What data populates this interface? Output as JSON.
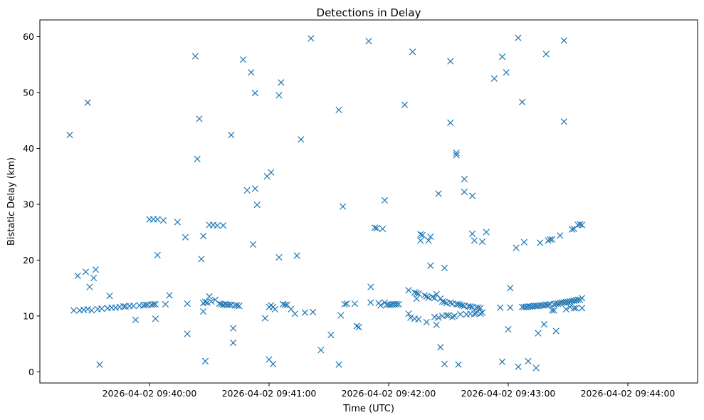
{
  "chart_data": {
    "type": "scatter",
    "title": "Detections in Delay",
    "xlabel": "Time (UTC)",
    "ylabel": "Bistatic Delay (km)",
    "marker": "x",
    "color": "#1f77b4",
    "grid": false,
    "x_tick_labels": [
      "2026-04-02 09:40:00",
      "2026-04-02 09:41:00",
      "2026-04-02 09:42:00",
      "2026-04-02 09:43:00",
      "2026-04-02 09:44:00"
    ],
    "y_ticks": [
      0,
      10,
      20,
      30,
      40,
      50,
      60
    ],
    "xlim": [
      "2026-04-02 09:39:05",
      "2026-04-02 09:44:35"
    ],
    "ylim": [
      -2,
      63
    ],
    "points": [
      {
        "t": "2026-04-02 09:39:20",
        "d": 42.4
      },
      {
        "t": "2026-04-02 09:39:22",
        "d": 11.0
      },
      {
        "t": "2026-04-02 09:39:24",
        "d": 17.2
      },
      {
        "t": "2026-04-02 09:39:25",
        "d": 11.0
      },
      {
        "t": "2026-04-02 09:39:27",
        "d": 11.1
      },
      {
        "t": "2026-04-02 09:39:28",
        "d": 17.9
      },
      {
        "t": "2026-04-02 09:39:29",
        "d": 48.2
      },
      {
        "t": "2026-04-02 09:39:29",
        "d": 11.2
      },
      {
        "t": "2026-04-02 09:39:30",
        "d": 15.2
      },
      {
        "t": "2026-04-02 09:39:31",
        "d": 11.0
      },
      {
        "t": "2026-04-02 09:39:32",
        "d": 16.8
      },
      {
        "t": "2026-04-02 09:39:33",
        "d": 18.3
      },
      {
        "t": "2026-04-02 09:39:34",
        "d": 11.2
      },
      {
        "t": "2026-04-02 09:39:35",
        "d": 1.3
      },
      {
        "t": "2026-04-02 09:39:36",
        "d": 11.3
      },
      {
        "t": "2026-04-02 09:39:39",
        "d": 11.4
      },
      {
        "t": "2026-04-02 09:39:40",
        "d": 13.6
      },
      {
        "t": "2026-04-02 09:39:41",
        "d": 11.5
      },
      {
        "t": "2026-04-02 09:39:43",
        "d": 11.5
      },
      {
        "t": "2026-04-02 09:39:45",
        "d": 11.6
      },
      {
        "t": "2026-04-02 09:39:47",
        "d": 11.7
      },
      {
        "t": "2026-04-02 09:39:48",
        "d": 11.7
      },
      {
        "t": "2026-04-02 09:39:50",
        "d": 11.8
      },
      {
        "t": "2026-04-02 09:39:52",
        "d": 11.8
      },
      {
        "t": "2026-04-02 09:39:53",
        "d": 9.3
      },
      {
        "t": "2026-04-02 09:39:55",
        "d": 11.9
      },
      {
        "t": "2026-04-02 09:39:57",
        "d": 11.9
      },
      {
        "t": "2026-04-02 09:39:58",
        "d": 12.0
      },
      {
        "t": "2026-04-02 09:39:59",
        "d": 12.0
      },
      {
        "t": "2026-04-02 09:40:00",
        "d": 27.3
      },
      {
        "t": "2026-04-02 09:40:02",
        "d": 27.3
      },
      {
        "t": "2026-04-02 09:40:01",
        "d": 12.0
      },
      {
        "t": "2026-04-02 09:40:02",
        "d": 12.1
      },
      {
        "t": "2026-04-02 09:40:03",
        "d": 12.1
      },
      {
        "t": "2026-04-02 09:40:03",
        "d": 9.5
      },
      {
        "t": "2026-04-02 09:40:04",
        "d": 20.9
      },
      {
        "t": "2026-04-02 09:40:04",
        "d": 27.3
      },
      {
        "t": "2026-04-02 09:40:07",
        "d": 27.1
      },
      {
        "t": "2026-04-02 09:40:08",
        "d": 12.1
      },
      {
        "t": "2026-04-02 09:40:10",
        "d": 13.7
      },
      {
        "t": "2026-04-02 09:40:14",
        "d": 26.8
      },
      {
        "t": "2026-04-02 09:40:18",
        "d": 24.1
      },
      {
        "t": "2026-04-02 09:40:19",
        "d": 6.8
      },
      {
        "t": "2026-04-02 09:40:19",
        "d": 12.2
      },
      {
        "t": "2026-04-02 09:40:23",
        "d": 56.5
      },
      {
        "t": "2026-04-02 09:40:24",
        "d": 38.1
      },
      {
        "t": "2026-04-02 09:40:25",
        "d": 45.3
      },
      {
        "t": "2026-04-02 09:40:26",
        "d": 20.2
      },
      {
        "t": "2026-04-02 09:40:27",
        "d": 24.3
      },
      {
        "t": "2026-04-02 09:40:27",
        "d": 10.8
      },
      {
        "t": "2026-04-02 09:40:27",
        "d": 12.3
      },
      {
        "t": "2026-04-02 09:40:28",
        "d": 12.5
      },
      {
        "t": "2026-04-02 09:40:28",
        "d": 1.9
      },
      {
        "t": "2026-04-02 09:40:29",
        "d": 12.4
      },
      {
        "t": "2026-04-02 09:40:30",
        "d": 13.5
      },
      {
        "t": "2026-04-02 09:40:30",
        "d": 26.3
      },
      {
        "t": "2026-04-02 09:40:31",
        "d": 12.6
      },
      {
        "t": "2026-04-02 09:40:32",
        "d": 26.3
      },
      {
        "t": "2026-04-02 09:40:33",
        "d": 12.9
      },
      {
        "t": "2026-04-02 09:40:34",
        "d": 26.2
      },
      {
        "t": "2026-04-02 09:40:35",
        "d": 12.2
      },
      {
        "t": "2026-04-02 09:40:36",
        "d": 12.1
      },
      {
        "t": "2026-04-02 09:40:37",
        "d": 26.2
      },
      {
        "t": "2026-04-02 09:40:37",
        "d": 12.0
      },
      {
        "t": "2026-04-02 09:40:38",
        "d": 12.1
      },
      {
        "t": "2026-04-02 09:40:39",
        "d": 12.0
      },
      {
        "t": "2026-04-02 09:40:40",
        "d": 12.0
      },
      {
        "t": "2026-04-02 09:40:41",
        "d": 42.4
      },
      {
        "t": "2026-04-02 09:40:41",
        "d": 12.0
      },
      {
        "t": "2026-04-02 09:40:42",
        "d": 7.8
      },
      {
        "t": "2026-04-02 09:40:42",
        "d": 5.2
      },
      {
        "t": "2026-04-02 09:40:43",
        "d": 11.9
      },
      {
        "t": "2026-04-02 09:40:44",
        "d": 11.9
      },
      {
        "t": "2026-04-02 09:40:45",
        "d": 11.8
      },
      {
        "t": "2026-04-02 09:40:47",
        "d": 55.9
      },
      {
        "t": "2026-04-02 09:40:49",
        "d": 32.5
      },
      {
        "t": "2026-04-02 09:40:51",
        "d": 53.6
      },
      {
        "t": "2026-04-02 09:40:52",
        "d": 22.8
      },
      {
        "t": "2026-04-02 09:40:53",
        "d": 49.9
      },
      {
        "t": "2026-04-02 09:40:53",
        "d": 32.8
      },
      {
        "t": "2026-04-02 09:40:54",
        "d": 29.9
      },
      {
        "t": "2026-04-02 09:40:58",
        "d": 9.6
      },
      {
        "t": "2026-04-02 09:40:59",
        "d": 35.0
      },
      {
        "t": "2026-04-02 09:41:00",
        "d": 11.6
      },
      {
        "t": "2026-04-02 09:41:00",
        "d": 2.2
      },
      {
        "t": "2026-04-02 09:41:01",
        "d": 11.9
      },
      {
        "t": "2026-04-02 09:41:01",
        "d": 35.7
      },
      {
        "t": "2026-04-02 09:41:02",
        "d": 11.6
      },
      {
        "t": "2026-04-02 09:41:02",
        "d": 1.4
      },
      {
        "t": "2026-04-02 09:41:03",
        "d": 11.2
      },
      {
        "t": "2026-04-02 09:41:05",
        "d": 49.5
      },
      {
        "t": "2026-04-02 09:41:05",
        "d": 20.5
      },
      {
        "t": "2026-04-02 09:41:06",
        "d": 51.8
      },
      {
        "t": "2026-04-02 09:41:07",
        "d": 12.1
      },
      {
        "t": "2026-04-02 09:41:08",
        "d": 12.0
      },
      {
        "t": "2026-04-02 09:41:09",
        "d": 12.0
      },
      {
        "t": "2026-04-02 09:41:11",
        "d": 11.2
      },
      {
        "t": "2026-04-02 09:41:13",
        "d": 10.4
      },
      {
        "t": "2026-04-02 09:41:14",
        "d": 20.8
      },
      {
        "t": "2026-04-02 09:41:16",
        "d": 41.6
      },
      {
        "t": "2026-04-02 09:41:18",
        "d": 10.6
      },
      {
        "t": "2026-04-02 09:41:21",
        "d": 59.7
      },
      {
        "t": "2026-04-02 09:41:22",
        "d": 10.7
      },
      {
        "t": "2026-04-02 09:41:26",
        "d": 3.9
      },
      {
        "t": "2026-04-02 09:41:31",
        "d": 6.6
      },
      {
        "t": "2026-04-02 09:41:35",
        "d": 46.9
      },
      {
        "t": "2026-04-02 09:41:35",
        "d": 1.3
      },
      {
        "t": "2026-04-02 09:41:36",
        "d": 10.1
      },
      {
        "t": "2026-04-02 09:41:37",
        "d": 29.6
      },
      {
        "t": "2026-04-02 09:41:38",
        "d": 12.1
      },
      {
        "t": "2026-04-02 09:41:39",
        "d": 12.2
      },
      {
        "t": "2026-04-02 09:41:43",
        "d": 12.2
      },
      {
        "t": "2026-04-02 09:41:44",
        "d": 8.2
      },
      {
        "t": "2026-04-02 09:41:45",
        "d": 8.0
      },
      {
        "t": "2026-04-02 09:41:50",
        "d": 59.2
      },
      {
        "t": "2026-04-02 09:41:51",
        "d": 12.4
      },
      {
        "t": "2026-04-02 09:41:51",
        "d": 15.2
      },
      {
        "t": "2026-04-02 09:41:53",
        "d": 25.8
      },
      {
        "t": "2026-04-02 09:41:54",
        "d": 25.7
      },
      {
        "t": "2026-04-02 09:41:55",
        "d": 12.3
      },
      {
        "t": "2026-04-02 09:41:56",
        "d": 11.9
      },
      {
        "t": "2026-04-02 09:41:57",
        "d": 25.6
      },
      {
        "t": "2026-04-02 09:41:58",
        "d": 12.4
      },
      {
        "t": "2026-04-02 09:41:58",
        "d": 30.7
      },
      {
        "t": "2026-04-02 09:41:59",
        "d": 12.0
      },
      {
        "t": "2026-04-02 09:42:00",
        "d": 12.0
      },
      {
        "t": "2026-04-02 09:42:01",
        "d": 12.0
      },
      {
        "t": "2026-04-02 09:42:02",
        "d": 12.1
      },
      {
        "t": "2026-04-02 09:42:03",
        "d": 12.1
      },
      {
        "t": "2026-04-02 09:42:04",
        "d": 12.1
      },
      {
        "t": "2026-04-02 09:42:05",
        "d": 12.1
      },
      {
        "t": "2026-04-02 09:42:08",
        "d": 47.8
      },
      {
        "t": "2026-04-02 09:42:10",
        "d": 14.6
      },
      {
        "t": "2026-04-02 09:42:10",
        "d": 10.4
      },
      {
        "t": "2026-04-02 09:42:11",
        "d": 9.7
      },
      {
        "t": "2026-04-02 09:42:12",
        "d": 57.3
      },
      {
        "t": "2026-04-02 09:42:13",
        "d": 14.2
      },
      {
        "t": "2026-04-02 09:42:13",
        "d": 9.5
      },
      {
        "t": "2026-04-02 09:42:14",
        "d": 13.1
      },
      {
        "t": "2026-04-02 09:42:14",
        "d": 14.1
      },
      {
        "t": "2026-04-02 09:42:15",
        "d": 14.0
      },
      {
        "t": "2026-04-02 09:42:15",
        "d": 9.4
      },
      {
        "t": "2026-04-02 09:42:16",
        "d": 24.6
      },
      {
        "t": "2026-04-02 09:42:16",
        "d": 23.5
      },
      {
        "t": "2026-04-02 09:42:17",
        "d": 24.5
      },
      {
        "t": "2026-04-02 09:42:18",
        "d": 13.7
      },
      {
        "t": "2026-04-02 09:42:19",
        "d": 13.5
      },
      {
        "t": "2026-04-02 09:42:19",
        "d": 8.9
      },
      {
        "t": "2026-04-02 09:42:20",
        "d": 23.5
      },
      {
        "t": "2026-04-02 09:42:20",
        "d": 13.3
      },
      {
        "t": "2026-04-02 09:42:21",
        "d": 19.0
      },
      {
        "t": "2026-04-02 09:42:21",
        "d": 24.2
      },
      {
        "t": "2026-04-02 09:42:22",
        "d": 13.4
      },
      {
        "t": "2026-04-02 09:42:23",
        "d": 9.8
      },
      {
        "t": "2026-04-02 09:42:23",
        "d": 13.2
      },
      {
        "t": "2026-04-02 09:42:24",
        "d": 13.9
      },
      {
        "t": "2026-04-02 09:42:24",
        "d": 8.4
      },
      {
        "t": "2026-04-02 09:42:25",
        "d": 31.9
      },
      {
        "t": "2026-04-02 09:42:25",
        "d": 9.7
      },
      {
        "t": "2026-04-02 09:42:26",
        "d": 4.4
      },
      {
        "t": "2026-04-02 09:42:26",
        "d": 13.1
      },
      {
        "t": "2026-04-02 09:42:27",
        "d": 12.6
      },
      {
        "t": "2026-04-02 09:42:27",
        "d": 10.0
      },
      {
        "t": "2026-04-02 09:42:28",
        "d": 18.6
      },
      {
        "t": "2026-04-02 09:42:28",
        "d": 12.5
      },
      {
        "t": "2026-04-02 09:42:28",
        "d": 1.4
      },
      {
        "t": "2026-04-02 09:42:29",
        "d": 10.1
      },
      {
        "t": "2026-04-02 09:42:29",
        "d": 12.3
      },
      {
        "t": "2026-04-02 09:42:30",
        "d": 10.1
      },
      {
        "t": "2026-04-02 09:42:31",
        "d": 55.6
      },
      {
        "t": "2026-04-02 09:42:31",
        "d": 44.6
      },
      {
        "t": "2026-04-02 09:42:31",
        "d": 12.4
      },
      {
        "t": "2026-04-02 09:42:32",
        "d": 9.8
      },
      {
        "t": "2026-04-02 09:42:32",
        "d": 12.2
      },
      {
        "t": "2026-04-02 09:42:33",
        "d": 10.0
      },
      {
        "t": "2026-04-02 09:42:34",
        "d": 12.1
      },
      {
        "t": "2026-04-02 09:42:34",
        "d": 39.2
      },
      {
        "t": "2026-04-02 09:42:34",
        "d": 38.8
      },
      {
        "t": "2026-04-02 09:42:35",
        "d": 12.1
      },
      {
        "t": "2026-04-02 09:42:35",
        "d": 1.3
      },
      {
        "t": "2026-04-02 09:42:36",
        "d": 10.3
      },
      {
        "t": "2026-04-02 09:42:36",
        "d": 12.0
      },
      {
        "t": "2026-04-02 09:42:37",
        "d": 11.9
      },
      {
        "t": "2026-04-02 09:42:38",
        "d": 34.5
      },
      {
        "t": "2026-04-02 09:42:38",
        "d": 32.2
      },
      {
        "t": "2026-04-02 09:42:38",
        "d": 11.8
      },
      {
        "t": "2026-04-02 09:42:39",
        "d": 10.3
      },
      {
        "t": "2026-04-02 09:42:40",
        "d": 11.7
      },
      {
        "t": "2026-04-02 09:42:41",
        "d": 10.4
      },
      {
        "t": "2026-04-02 09:42:41",
        "d": 11.7
      },
      {
        "t": "2026-04-02 09:42:42",
        "d": 24.7
      },
      {
        "t": "2026-04-02 09:42:42",
        "d": 31.5
      },
      {
        "t": "2026-04-02 09:42:42",
        "d": 11.6
      },
      {
        "t": "2026-04-02 09:42:43",
        "d": 23.5
      },
      {
        "t": "2026-04-02 09:42:43",
        "d": 10.4
      },
      {
        "t": "2026-04-02 09:42:44",
        "d": 11.5
      },
      {
        "t": "2026-04-02 09:42:44",
        "d": 10.5
      },
      {
        "t": "2026-04-02 09:42:45",
        "d": 11.5
      },
      {
        "t": "2026-04-02 09:42:46",
        "d": 10.4
      },
      {
        "t": "2026-04-02 09:42:46",
        "d": 11.4
      },
      {
        "t": "2026-04-02 09:42:47",
        "d": 23.3
      },
      {
        "t": "2026-04-02 09:42:47",
        "d": 10.6
      },
      {
        "t": "2026-04-02 09:42:49",
        "d": 25.0
      },
      {
        "t": "2026-04-02 09:42:53",
        "d": 52.5
      },
      {
        "t": "2026-04-02 09:42:56",
        "d": 11.5
      },
      {
        "t": "2026-04-02 09:42:57",
        "d": 56.4
      },
      {
        "t": "2026-04-02 09:42:57",
        "d": 1.8
      },
      {
        "t": "2026-04-02 09:42:59",
        "d": 53.6
      },
      {
        "t": "2026-04-02 09:43:00",
        "d": 7.6
      },
      {
        "t": "2026-04-02 09:43:01",
        "d": 15.0
      },
      {
        "t": "2026-04-02 09:43:01",
        "d": 11.5
      },
      {
        "t": "2026-04-02 09:43:04",
        "d": 22.2
      },
      {
        "t": "2026-04-02 09:43:05",
        "d": 59.8
      },
      {
        "t": "2026-04-02 09:43:05",
        "d": 0.9
      },
      {
        "t": "2026-04-02 09:43:07",
        "d": 48.3
      },
      {
        "t": "2026-04-02 09:43:07",
        "d": 11.6
      },
      {
        "t": "2026-04-02 09:43:08",
        "d": 23.2
      },
      {
        "t": "2026-04-02 09:43:08",
        "d": 11.6
      },
      {
        "t": "2026-04-02 09:43:09",
        "d": 11.6
      },
      {
        "t": "2026-04-02 09:43:10",
        "d": 11.7
      },
      {
        "t": "2026-04-02 09:43:10",
        "d": 1.9
      },
      {
        "t": "2026-04-02 09:43:11",
        "d": 11.7
      },
      {
        "t": "2026-04-02 09:43:12",
        "d": 11.7
      },
      {
        "t": "2026-04-02 09:43:13",
        "d": 11.8
      },
      {
        "t": "2026-04-02 09:43:14",
        "d": 11.8
      },
      {
        "t": "2026-04-02 09:43:14",
        "d": 0.7
      },
      {
        "t": "2026-04-02 09:43:15",
        "d": 11.8
      },
      {
        "t": "2026-04-02 09:43:15",
        "d": 6.9
      },
      {
        "t": "2026-04-02 09:43:16",
        "d": 23.1
      },
      {
        "t": "2026-04-02 09:43:16",
        "d": 11.9
      },
      {
        "t": "2026-04-02 09:43:17",
        "d": 11.9
      },
      {
        "t": "2026-04-02 09:43:18",
        "d": 8.5
      },
      {
        "t": "2026-04-02 09:43:18",
        "d": 11.9
      },
      {
        "t": "2026-04-02 09:43:19",
        "d": 56.9
      },
      {
        "t": "2026-04-02 09:43:19",
        "d": 12.0
      },
      {
        "t": "2026-04-02 09:43:20",
        "d": 23.5
      },
      {
        "t": "2026-04-02 09:43:20",
        "d": 12.0
      },
      {
        "t": "2026-04-02 09:43:21",
        "d": 23.7
      },
      {
        "t": "2026-04-02 09:43:21",
        "d": 12.1
      },
      {
        "t": "2026-04-02 09:43:22",
        "d": 23.7
      },
      {
        "t": "2026-04-02 09:43:22",
        "d": 11.0
      },
      {
        "t": "2026-04-02 09:43:23",
        "d": 12.1
      },
      {
        "t": "2026-04-02 09:43:23",
        "d": 11.0
      },
      {
        "t": "2026-04-02 09:43:24",
        "d": 12.2
      },
      {
        "t": "2026-04-02 09:43:24",
        "d": 7.3
      },
      {
        "t": "2026-04-02 09:43:25",
        "d": 12.2
      },
      {
        "t": "2026-04-02 09:43:26",
        "d": 24.4
      },
      {
        "t": "2026-04-02 09:43:26",
        "d": 12.3
      },
      {
        "t": "2026-04-02 09:43:27",
        "d": 12.4
      },
      {
        "t": "2026-04-02 09:43:28",
        "d": 59.3
      },
      {
        "t": "2026-04-02 09:43:28",
        "d": 44.8
      },
      {
        "t": "2026-04-02 09:43:28",
        "d": 12.4
      },
      {
        "t": "2026-04-02 09:43:29",
        "d": 11.2
      },
      {
        "t": "2026-04-02 09:43:29",
        "d": 12.5
      },
      {
        "t": "2026-04-02 09:43:30",
        "d": 12.5
      },
      {
        "t": "2026-04-02 09:43:31",
        "d": 12.6
      },
      {
        "t": "2026-04-02 09:43:31",
        "d": 11.6
      },
      {
        "t": "2026-04-02 09:43:32",
        "d": 25.5
      },
      {
        "t": "2026-04-02 09:43:32",
        "d": 12.7
      },
      {
        "t": "2026-04-02 09:43:33",
        "d": 11.4
      },
      {
        "t": "2026-04-02 09:43:33",
        "d": 25.6
      },
      {
        "t": "2026-04-02 09:43:33",
        "d": 12.7
      },
      {
        "t": "2026-04-02 09:43:34",
        "d": 12.8
      },
      {
        "t": "2026-04-02 09:43:34",
        "d": 11.4
      },
      {
        "t": "2026-04-02 09:43:35",
        "d": 26.3
      },
      {
        "t": "2026-04-02 09:43:35",
        "d": 12.9
      },
      {
        "t": "2026-04-02 09:43:36",
        "d": 26.4
      },
      {
        "t": "2026-04-02 09:43:36",
        "d": 12.9
      },
      {
        "t": "2026-04-02 09:43:37",
        "d": 26.3
      },
      {
        "t": "2026-04-02 09:43:37",
        "d": 11.4
      },
      {
        "t": "2026-04-02 09:43:37",
        "d": 13.2
      }
    ]
  }
}
